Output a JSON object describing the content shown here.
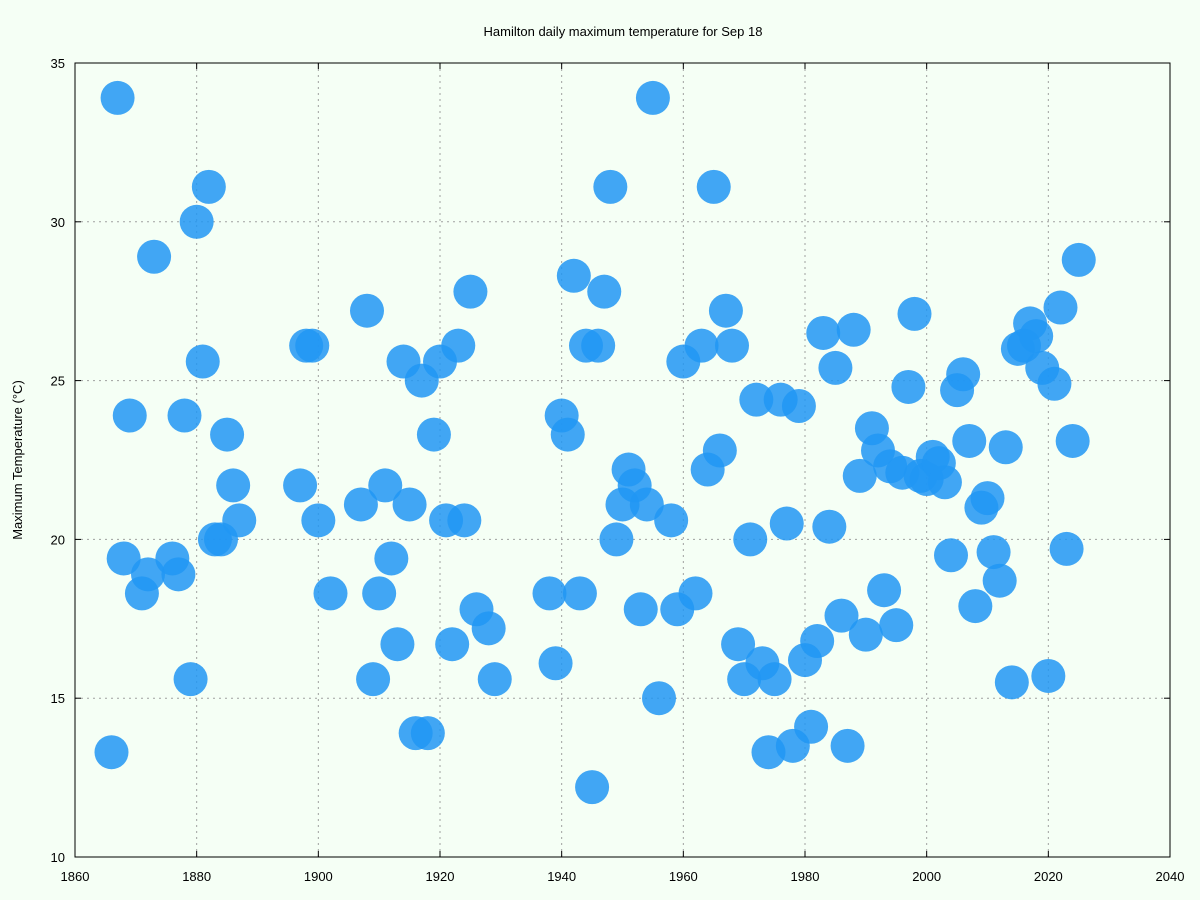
{
  "chart_data": {
    "type": "scatter",
    "title": "Hamilton daily maximum temperature for Sep 18",
    "xlabel": "",
    "ylabel": "Maximum Temperature (°C)",
    "xlim": [
      1860,
      2040
    ],
    "ylim": [
      10,
      35
    ],
    "xticks": [
      "1860",
      "1880",
      "1900",
      "1920",
      "1940",
      "1960",
      "1980",
      "2000",
      "2020",
      "2040"
    ],
    "yticks": [
      "10",
      "15",
      "20",
      "25",
      "30",
      "35"
    ],
    "grid": true,
    "marker_color": "#2196f3",
    "background": "#f5fff5",
    "points": [
      [
        1866,
        13.3
      ],
      [
        1867,
        33.9
      ],
      [
        1868,
        19.4
      ],
      [
        1869,
        23.9
      ],
      [
        1871,
        18.3
      ],
      [
        1872,
        18.9
      ],
      [
        1873,
        28.9
      ],
      [
        1876,
        19.4
      ],
      [
        1877,
        18.9
      ],
      [
        1878,
        23.9
      ],
      [
        1879,
        15.6
      ],
      [
        1880,
        30.0
      ],
      [
        1881,
        25.6
      ],
      [
        1882,
        31.1
      ],
      [
        1883,
        20.0
      ],
      [
        1884,
        20.0
      ],
      [
        1885,
        23.3
      ],
      [
        1886,
        21.7
      ],
      [
        1887,
        20.6
      ],
      [
        1897,
        21.7
      ],
      [
        1898,
        26.1
      ],
      [
        1899,
        26.1
      ],
      [
        1900,
        20.6
      ],
      [
        1902,
        18.3
      ],
      [
        1907,
        21.1
      ],
      [
        1908,
        27.2
      ],
      [
        1909,
        15.6
      ],
      [
        1910,
        18.3
      ],
      [
        1911,
        21.7
      ],
      [
        1912,
        19.4
      ],
      [
        1913,
        16.7
      ],
      [
        1914,
        25.6
      ],
      [
        1915,
        21.1
      ],
      [
        1916,
        13.9
      ],
      [
        1917,
        25.0
      ],
      [
        1918,
        13.9
      ],
      [
        1919,
        23.3
      ],
      [
        1920,
        25.6
      ],
      [
        1921,
        20.6
      ],
      [
        1922,
        16.7
      ],
      [
        1923,
        26.1
      ],
      [
        1924,
        20.6
      ],
      [
        1925,
        27.8
      ],
      [
        1926,
        17.8
      ],
      [
        1928,
        17.2
      ],
      [
        1929,
        15.6
      ],
      [
        1938,
        18.3
      ],
      [
        1939,
        16.1
      ],
      [
        1940,
        23.9
      ],
      [
        1941,
        23.3
      ],
      [
        1942,
        28.3
      ],
      [
        1943,
        18.3
      ],
      [
        1944,
        26.1
      ],
      [
        1945,
        12.2
      ],
      [
        1946,
        26.1
      ],
      [
        1947,
        27.8
      ],
      [
        1948,
        31.1
      ],
      [
        1949,
        20.0
      ],
      [
        1950,
        21.1
      ],
      [
        1951,
        22.2
      ],
      [
        1952,
        21.7
      ],
      [
        1953,
        17.8
      ],
      [
        1954,
        21.1
      ],
      [
        1955,
        33.9
      ],
      [
        1956,
        15.0
      ],
      [
        1958,
        20.6
      ],
      [
        1959,
        17.8
      ],
      [
        1960,
        25.6
      ],
      [
        1962,
        18.3
      ],
      [
        1963,
        26.1
      ],
      [
        1964,
        22.2
      ],
      [
        1965,
        31.1
      ],
      [
        1966,
        22.8
      ],
      [
        1967,
        27.2
      ],
      [
        1968,
        26.1
      ],
      [
        1969,
        16.7
      ],
      [
        1970,
        15.6
      ],
      [
        1971,
        20.0
      ],
      [
        1972,
        24.4
      ],
      [
        1973,
        16.1
      ],
      [
        1974,
        13.3
      ],
      [
        1975,
        15.6
      ],
      [
        1976,
        24.4
      ],
      [
        1977,
        20.5
      ],
      [
        1978,
        13.5
      ],
      [
        1979,
        24.2
      ],
      [
        1980,
        16.2
      ],
      [
        1981,
        14.1
      ],
      [
        1982,
        16.8
      ],
      [
        1983,
        26.5
      ],
      [
        1984,
        20.4
      ],
      [
        1985,
        25.4
      ],
      [
        1986,
        17.6
      ],
      [
        1987,
        13.5
      ],
      [
        1988,
        26.6
      ],
      [
        1989,
        22.0
      ],
      [
        1990,
        17.0
      ],
      [
        1991,
        23.5
      ],
      [
        1992,
        22.8
      ],
      [
        1993,
        18.4
      ],
      [
        1994,
        22.3
      ],
      [
        1995,
        17.3
      ],
      [
        1996,
        22.1
      ],
      [
        1997,
        24.8
      ],
      [
        1998,
        27.1
      ],
      [
        1999,
        22.0
      ],
      [
        2000,
        21.9
      ],
      [
        2001,
        22.6
      ],
      [
        2002,
        22.4
      ],
      [
        2003,
        21.8
      ],
      [
        2004,
        19.5
      ],
      [
        2005,
        24.7
      ],
      [
        2006,
        25.2
      ],
      [
        2007,
        23.1
      ],
      [
        2008,
        17.9
      ],
      [
        2009,
        21.0
      ],
      [
        2010,
        21.3
      ],
      [
        2011,
        19.6
      ],
      [
        2012,
        18.7
      ],
      [
        2013,
        22.9
      ],
      [
        2014,
        15.5
      ],
      [
        2015,
        26.0
      ],
      [
        2016,
        26.1
      ],
      [
        2017,
        26.8
      ],
      [
        2018,
        26.4
      ],
      [
        2019,
        25.4
      ],
      [
        2020,
        15.7
      ],
      [
        2021,
        24.9
      ],
      [
        2022,
        27.3
      ],
      [
        2023,
        19.7
      ],
      [
        2024,
        23.1
      ],
      [
        2025,
        28.8
      ]
    ]
  }
}
